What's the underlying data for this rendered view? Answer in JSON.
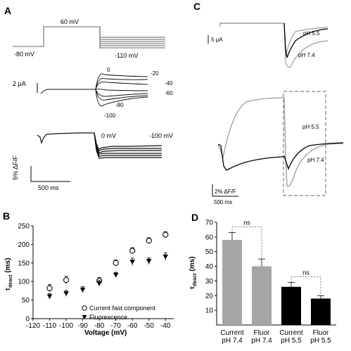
{
  "panels": {
    "A": {
      "letter": "A",
      "protocol_labels": {
        "hold": "-80 mV",
        "step": "60 mV",
        "tail": "-110 mV"
      },
      "current_scale": "2 μA",
      "current_trace_labels": [
        "0",
        "-20",
        "-40",
        "-60",
        "-80",
        "-100"
      ],
      "fluor_labels": {
        "top": "0 mV",
        "bottom": "-100 mV"
      },
      "fluor_scale": "5% ΔF/F",
      "time_scale": "500 ms"
    },
    "C": {
      "letter": "C",
      "current_scale": "5 μA",
      "current_labels": {
        "acidic": "pH 5.5",
        "neutral": "pH 7.4"
      },
      "fluor_labels": {
        "acidic": "pH 5.5",
        "neutral": "pH 7.4"
      },
      "fluor_scale": "2% ΔF/F",
      "time_scale": "500 ms"
    },
    "B": {
      "letter": "B"
    },
    "D": {
      "letter": "D"
    }
  },
  "chart_data": [
    {
      "panel": "B",
      "type": "scatter",
      "xlabel": "Voltage (mV)",
      "ylabel": "τ",
      "ylabel_sub": "deact",
      "ylabel_unit": "(ms)",
      "xlim": [
        -120,
        -35
      ],
      "ylim": [
        0,
        250
      ],
      "xticks": [
        -120,
        -110,
        -100,
        -90,
        -80,
        -70,
        -60,
        -50,
        -40
      ],
      "yticks": [
        0,
        50,
        100,
        150,
        200,
        250
      ],
      "legend_position": "bottom-right",
      "series": [
        {
          "name": "Current fast component",
          "marker": "open-circle",
          "x": [
            -110,
            -100,
            -80,
            -70,
            -60,
            -50,
            -40
          ],
          "y": [
            82,
            104,
            102,
            150,
            183,
            210,
            226
          ],
          "err": [
            10,
            10,
            9,
            8,
            8,
            8,
            8
          ]
        },
        {
          "name": "Fluorescence",
          "marker": "filled-triangle-down",
          "x": [
            -110,
            -100,
            -90,
            -80,
            -70,
            -60,
            -50,
            -40
          ],
          "y": [
            60,
            68,
            78,
            95,
            118,
            153,
            155,
            167
          ],
          "err": [
            7,
            8,
            8,
            8,
            7,
            10,
            9,
            10
          ]
        }
      ]
    },
    {
      "panel": "D",
      "type": "bar",
      "ylabel": "τ",
      "ylabel_sub": "deact",
      "ylabel_unit": "(ms)",
      "ylim": [
        0,
        70
      ],
      "yticks": [
        10,
        20,
        30,
        40,
        50,
        60,
        70
      ],
      "categories": [
        [
          "Current",
          "pH 7.4"
        ],
        [
          "Fluor",
          "pH 7.4"
        ],
        [
          "Current",
          "pH 5.5"
        ],
        [
          "Fluor",
          "pH 5.5"
        ]
      ],
      "values": [
        58,
        40,
        26,
        18
      ],
      "err": [
        5,
        5,
        3,
        2
      ],
      "colors": [
        "#a6a6a6",
        "#a6a6a6",
        "#000000",
        "#000000"
      ],
      "annotations": [
        {
          "text": "ns",
          "between": [
            0,
            1
          ]
        },
        {
          "text": "ns",
          "between": [
            2,
            3
          ]
        }
      ]
    }
  ]
}
